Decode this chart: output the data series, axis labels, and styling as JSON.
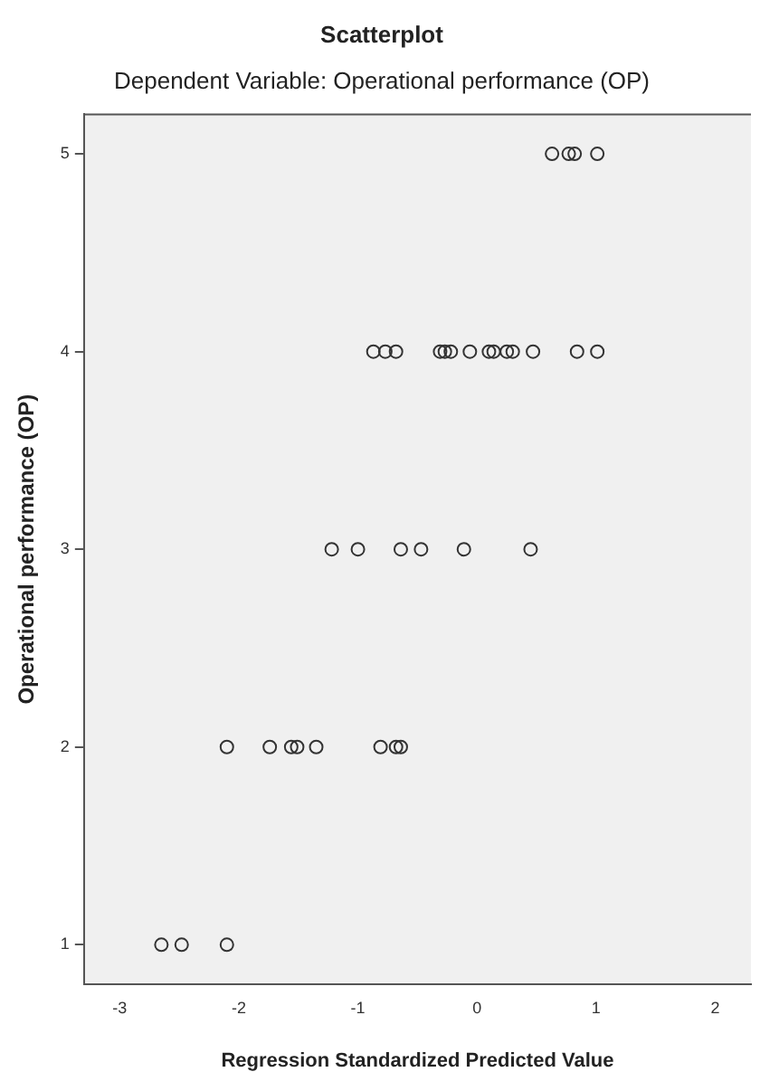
{
  "chart_data": {
    "type": "scatter",
    "title": "Scatterplot",
    "subtitle": "Dependent Variable: Operational performance (OP)",
    "xlabel": "Regression Standardized Predicted Value",
    "ylabel": "Operational performance (OP)",
    "x": [
      -2.65,
      -2.48,
      -2.1,
      -2.1,
      -1.74,
      -1.56,
      -1.51,
      -1.35,
      -0.81,
      -0.68,
      -0.64,
      -1.22,
      -1.0,
      -0.64,
      -0.47,
      -0.11,
      0.45,
      -0.87,
      -0.77,
      -0.68,
      -0.31,
      -0.27,
      -0.22,
      -0.06,
      0.1,
      0.14,
      0.25,
      0.3,
      0.47,
      0.84,
      1.01,
      0.63,
      0.77,
      0.82,
      1.01
    ],
    "values": [
      1,
      1,
      1,
      2,
      2,
      2,
      2,
      2,
      2,
      2,
      2,
      3,
      3,
      3,
      3,
      3,
      3,
      4,
      4,
      4,
      4,
      4,
      4,
      4,
      4,
      4,
      4,
      4,
      4,
      4,
      4,
      5,
      5,
      5,
      5
    ],
    "color": "#333333",
    "marker": "circle",
    "grid": false,
    "legend": false,
    "xlim": [
      -3.3,
      2.3
    ],
    "xticks": [
      -3,
      -2,
      -1,
      0,
      1,
      2
    ],
    "ylim": [
      0.8,
      5.2
    ],
    "yticks": [
      1,
      2,
      3,
      4,
      5
    ]
  }
}
